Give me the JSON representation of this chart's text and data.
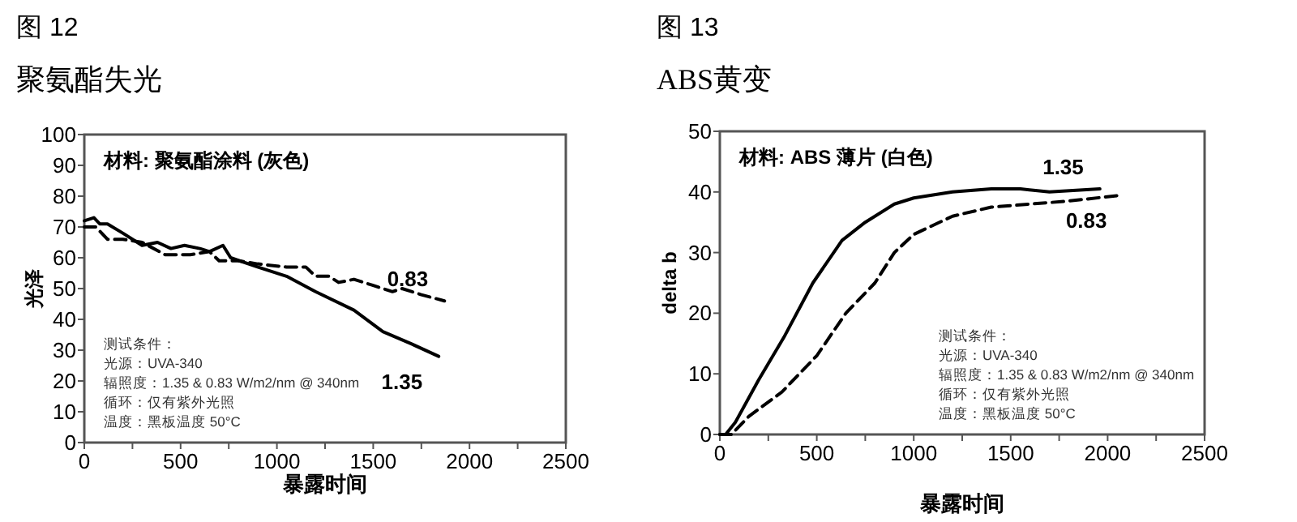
{
  "chart_data": [
    {
      "type": "line",
      "title": "图 12",
      "subtitle": "聚氨酯失光",
      "xlabel": "暴露时间",
      "ylabel": "光泽",
      "xlim": [
        0,
        2500
      ],
      "xticks": [
        0,
        {
          "value": 250,
          "label": null
        },
        500,
        {
          "value": 750,
          "label": null
        },
        1000,
        {
          "value": 1250,
          "label": null
        },
        1500,
        {
          "value": 1750,
          "label": null
        },
        2000,
        {
          "value": 2250,
          "label": null
        },
        2500
      ],
      "ylim": [
        0,
        100
      ],
      "yticks": [
        0,
        10,
        20,
        30,
        40,
        50,
        60,
        70,
        80,
        90,
        100
      ],
      "grid": false,
      "marker": "none",
      "annotations": [
        "材料: 聚氨酯涂料 (灰色)",
        "测试条件：",
        "光源：UVA-340",
        "辐照度：1.35 & 0.83 W/m2/nm @ 340nm",
        "循环：仅有紫外光照",
        "温度：黑板温度 50°C"
      ],
      "series": [
        {
          "name": "1.35",
          "color": "#000000",
          "line_style": "solid",
          "x": [
            0,
            50,
            80,
            120,
            200,
            300,
            380,
            450,
            520,
            600,
            650,
            720,
            760,
            900,
            1050,
            1200,
            1400,
            1550,
            1700,
            1840
          ],
          "values": [
            72,
            73,
            71,
            71,
            68,
            64,
            65,
            63,
            64,
            63,
            62,
            64,
            60,
            57,
            54,
            49,
            43,
            36,
            32,
            28
          ]
        },
        {
          "name": "0.83",
          "color": "#000000",
          "line_style": "dashed",
          "x": [
            0,
            60,
            120,
            200,
            300,
            420,
            550,
            650,
            700,
            800,
            900,
            1050,
            1150,
            1200,
            1270,
            1320,
            1400,
            1500,
            1600,
            1650,
            1750,
            1870
          ],
          "values": [
            70,
            70,
            66,
            66,
            65,
            61,
            61,
            62,
            59,
            59,
            58,
            57,
            57,
            54,
            54,
            52,
            53,
            51,
            49,
            50,
            48,
            46
          ]
        }
      ]
    },
    {
      "type": "line",
      "title": "图 13",
      "subtitle": "ABS黄变",
      "xlabel": "暴露时间",
      "ylabel": "delta b",
      "xlim": [
        0,
        2500
      ],
      "xticks": [
        0,
        {
          "value": 250,
          "label": null
        },
        500,
        {
          "value": 750,
          "label": null
        },
        1000,
        {
          "value": 1250,
          "label": null
        },
        1500,
        {
          "value": 1750,
          "label": null
        },
        2000,
        {
          "value": 2250,
          "label": null
        },
        2500
      ],
      "ylim": [
        0,
        50
      ],
      "yticks": [
        0,
        10,
        20,
        30,
        40,
        50
      ],
      "grid": false,
      "marker": "none",
      "annotations": [
        "材料: ABS 薄片 (白色)",
        "测试条件：",
        "光源：UVA-340",
        "辐照度：1.35 & 0.83 W/m2/nm @ 340nm",
        "循环：仅有紫外光照",
        "温度：黑板温度 50°C"
      ],
      "series": [
        {
          "name": "1.35",
          "color": "#000000",
          "line_style": "solid",
          "x": [
            0,
            30,
            80,
            200,
            330,
            480,
            630,
            750,
            900,
            1000,
            1200,
            1400,
            1550,
            1700,
            1960
          ],
          "values": [
            0,
            0,
            2,
            9,
            16,
            25,
            32,
            35,
            38,
            39,
            40,
            40.5,
            40.5,
            40,
            40.5
          ]
        },
        {
          "name": "0.83",
          "color": "#000000",
          "line_style": "dashed",
          "x": [
            0,
            60,
            150,
            320,
            500,
            650,
            800,
            900,
            1000,
            1200,
            1400,
            1600,
            1800,
            2080
          ],
          "values": [
            0,
            0,
            3,
            7,
            13,
            20,
            25,
            30,
            33,
            36,
            37.5,
            38,
            38.5,
            39.5
          ]
        }
      ]
    }
  ]
}
